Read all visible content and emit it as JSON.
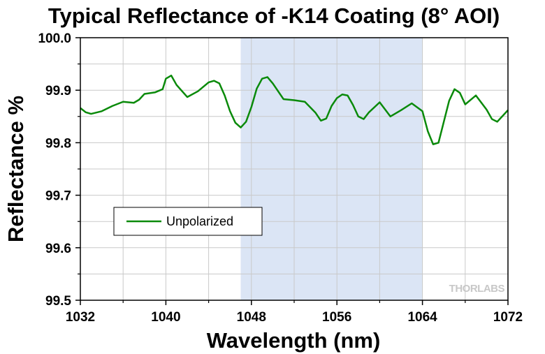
{
  "chart_data": {
    "type": "line",
    "title": "Typical Reflectance of -K14 Coating (8° AOI)",
    "xlabel": "Wavelength (nm)",
    "ylabel": "Reflectance %",
    "xlim": [
      1032,
      1072
    ],
    "ylim": [
      99.5,
      100.0
    ],
    "xticks": [
      "1032",
      "1040",
      "1048",
      "1056",
      "1064",
      "1072"
    ],
    "yticks": [
      "99.5",
      "99.6",
      "99.7",
      "99.8",
      "99.9",
      "100.0"
    ],
    "grid": true,
    "legend_position": "lower-left",
    "highlight_band": {
      "x_start": 1047,
      "x_end": 1064,
      "color": "#dbe5f5"
    },
    "series": [
      {
        "name": "Unpolarized",
        "color": "#0a8a0a",
        "x": [
          1032,
          1032.5,
          1033,
          1034,
          1035,
          1036,
          1036.5,
          1037,
          1037.5,
          1038,
          1039,
          1039.7,
          1040,
          1040.5,
          1041,
          1042,
          1043,
          1044,
          1044.5,
          1045,
          1045.5,
          1046,
          1046.5,
          1047,
          1047.5,
          1048,
          1048.5,
          1049,
          1049.5,
          1050,
          1051,
          1052,
          1053,
          1054,
          1054.5,
          1055,
          1055.5,
          1056,
          1056.5,
          1057,
          1057.5,
          1058,
          1058.5,
          1059,
          1060,
          1061,
          1062,
          1063,
          1064,
          1064.5,
          1065,
          1065.5,
          1066,
          1066.5,
          1067,
          1067.5,
          1068,
          1069,
          1070,
          1070.5,
          1071,
          1072
        ],
        "y": [
          99.866,
          99.858,
          99.855,
          99.86,
          99.87,
          99.878,
          99.877,
          99.876,
          99.882,
          99.893,
          99.896,
          99.902,
          99.922,
          99.928,
          99.91,
          99.887,
          99.898,
          99.915,
          99.918,
          99.913,
          99.89,
          99.86,
          99.838,
          99.829,
          99.84,
          99.868,
          99.903,
          99.922,
          99.925,
          99.913,
          99.883,
          99.881,
          99.878,
          99.857,
          99.842,
          99.846,
          99.87,
          99.885,
          99.892,
          99.89,
          99.872,
          99.85,
          99.845,
          99.858,
          99.877,
          99.85,
          99.862,
          99.875,
          99.86,
          99.822,
          99.797,
          99.8,
          99.84,
          99.88,
          99.902,
          99.895,
          99.873,
          99.89,
          99.863,
          99.845,
          99.84,
          99.862
        ]
      }
    ]
  },
  "watermark": "THORLABS"
}
